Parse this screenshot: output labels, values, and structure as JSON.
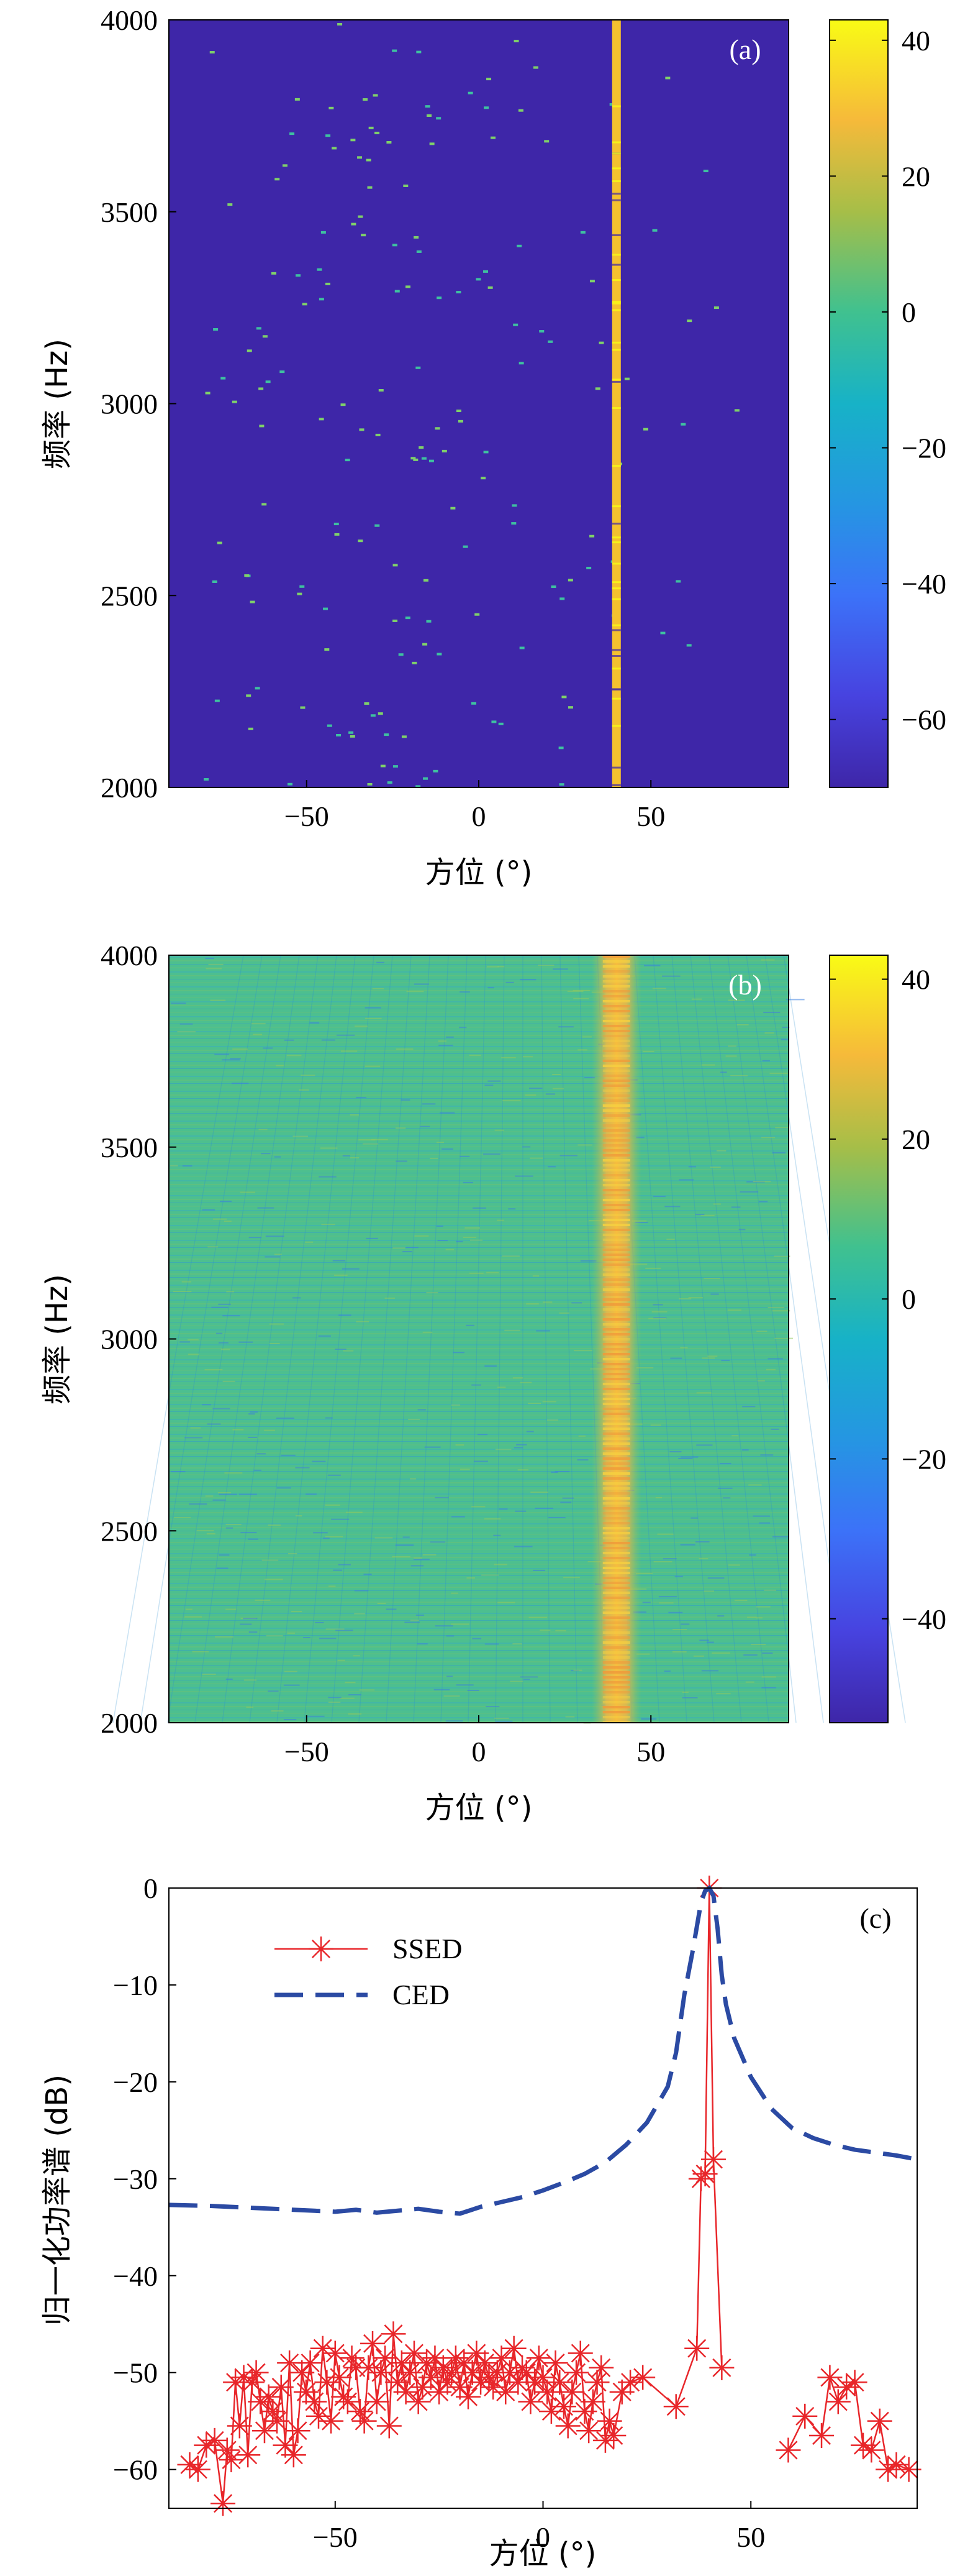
{
  "chart_data": [
    {
      "id": "a",
      "type": "heatmap",
      "panel_label": "(a)",
      "title": "",
      "xlabel": "方位 (°)",
      "ylabel": "频率 (Hz)",
      "xlim": [
        -90,
        90
      ],
      "ylim": [
        2000,
        4000
      ],
      "xticks": [
        -50,
        0,
        50
      ],
      "yticks": [
        2000,
        2500,
        3000,
        3500,
        4000
      ],
      "colorbar": {
        "range": [
          -70,
          43
        ],
        "ticks": [
          -60,
          -40,
          -20,
          0,
          20,
          40
        ]
      },
      "background_level": -70,
      "source_bearing": 40,
      "source_level": 40,
      "description_values": {
        "sparse_peaks_level": 0,
        "sparse_peaks_region_x": [
          -90,
          90
        ]
      }
    },
    {
      "id": "b",
      "type": "heatmap",
      "panel_label": "(b)",
      "title": "",
      "xlabel": "方位 (°)",
      "ylabel": "频率 (Hz)",
      "xlim": [
        -90,
        90
      ],
      "ylim": [
        2000,
        4000
      ],
      "xticks": [
        -50,
        0,
        50
      ],
      "yticks": [
        2000,
        2500,
        3000,
        3500,
        4000
      ],
      "colorbar": {
        "range": [
          -53,
          43
        ],
        "ticks": [
          -40,
          -20,
          0,
          20,
          40
        ]
      },
      "background_level": 0,
      "source_bearing": 40,
      "source_level": 25
    },
    {
      "id": "c",
      "type": "line",
      "panel_label": "(c)",
      "title": "",
      "xlabel": "方位 (°)",
      "ylabel": "归一化功率谱 (dB)",
      "xlim": [
        -90,
        90
      ],
      "ylim": [
        -64,
        0
      ],
      "xticks": [
        -50,
        0,
        50
      ],
      "yticks": [
        -60,
        -50,
        -40,
        -30,
        -20,
        -10,
        0
      ],
      "legend": "top-left",
      "series": [
        {
          "name": "SSED",
          "style": "solid-star",
          "color": "#e8262a",
          "x": [
            -85,
            -83,
            -81,
            -79,
            -77,
            -76,
            -75,
            -74,
            -73,
            -72,
            -71,
            -70,
            -69,
            -68,
            -67,
            -66,
            -65,
            -64,
            -63,
            -62,
            -61,
            -60,
            -59,
            -58,
            -57,
            -56,
            -55,
            -54,
            -53,
            -52,
            -51,
            -50,
            -49,
            -48,
            -47,
            -46,
            -45,
            -44,
            -43,
            -42,
            -41,
            -40,
            -39,
            -38,
            -37,
            -36,
            -35,
            -34,
            -33,
            -32,
            -31,
            -30,
            -29,
            -28,
            -27,
            -26,
            -25,
            -24,
            -23,
            -22,
            -21,
            -20,
            -19,
            -18,
            -17,
            -16,
            -15,
            -14,
            -13,
            -12,
            -11,
            -10,
            -9,
            -8,
            -7,
            -6,
            -5,
            -4,
            -3,
            -2,
            -1,
            0,
            1,
            2,
            3,
            4,
            5,
            6,
            7,
            8,
            9,
            10,
            11,
            12,
            13,
            14,
            15,
            16,
            17,
            19,
            21,
            24,
            32,
            37,
            38,
            39,
            40,
            41,
            43
          ],
          "y": [
            -59.5,
            -60,
            -57.5,
            -57,
            -63.5,
            -58,
            -59,
            -51,
            -55.5,
            -50.5,
            -58.5,
            -51,
            -50,
            -53,
            -56,
            -52.5,
            -54,
            -55,
            -51.5,
            -57.5,
            -49,
            -58.5,
            -56,
            -50,
            -52,
            -49,
            -53,
            -54.5,
            -47.5,
            -51,
            -55,
            -48,
            -50.5,
            -52.5,
            -53,
            -48.5,
            -49.5,
            -54,
            -55,
            -49.5,
            -47,
            -53,
            -50,
            -48.5,
            -55.5,
            -46,
            -51,
            -49,
            -52,
            -50,
            -48,
            -53,
            -51.5,
            -49,
            -50.5,
            -48.5,
            -52,
            -49.5,
            -51,
            -50,
            -48.5,
            -51.5,
            -49,
            -52.5,
            -50,
            -48,
            -51,
            -49,
            -50.5,
            -51.5,
            -50,
            -48.5,
            -52,
            -50,
            -47.5,
            -51,
            -49.5,
            -50,
            -53,
            -51,
            -48.5,
            -50.5,
            -52,
            -54,
            -49,
            -51,
            -53.5,
            -55.5,
            -52,
            -50,
            -48,
            -54,
            -56,
            -53,
            -51,
            -49.5,
            -57,
            -55,
            -56.5,
            -52,
            -51,
            -50.5,
            -53.5,
            -47.5,
            -30,
            -29.5,
            0,
            -28,
            -49.5
          ]
        },
        {
          "name": "SSED",
          "style": "solid-star",
          "color": "#e8262a",
          "x": [
            59,
            63,
            67,
            69,
            71,
            73,
            75,
            77,
            79,
            81,
            83,
            85,
            88
          ],
          "y": [
            -58,
            -54.5,
            -56.5,
            -50.5,
            -53,
            -51.5,
            -51,
            -57.5,
            -58,
            -55,
            -60,
            -59.5,
            -60
          ]
        },
        {
          "name": "CED",
          "style": "dashed",
          "color": "#2b4aa3",
          "x": [
            -90,
            -80,
            -70,
            -60,
            -50,
            -45,
            -40,
            -35,
            -30,
            -25,
            -20,
            -15,
            -10,
            -5,
            0,
            5,
            10,
            15,
            20,
            25,
            30,
            32,
            34,
            36,
            37,
            38,
            39,
            40,
            41,
            42,
            43,
            44,
            46,
            48,
            50,
            55,
            60,
            65,
            70,
            75,
            80,
            85,
            90
          ],
          "y": [
            -32.7,
            -32.8,
            -33.0,
            -33.2,
            -33.4,
            -33.2,
            -33.5,
            -33.3,
            -33.1,
            -33.4,
            -33.6,
            -32.9,
            -32.4,
            -31.9,
            -31.2,
            -30.4,
            -29.5,
            -28.3,
            -26.5,
            -24.2,
            -20.5,
            -17.0,
            -11.0,
            -6.5,
            -4.0,
            -1.5,
            -0.3,
            0,
            -0.8,
            -4.2,
            -9.0,
            -12.0,
            -15.5,
            -17.5,
            -19.5,
            -22.8,
            -24.8,
            -25.8,
            -26.5,
            -27.0,
            -27.3,
            -27.6,
            -28.0
          ]
        }
      ]
    }
  ]
}
